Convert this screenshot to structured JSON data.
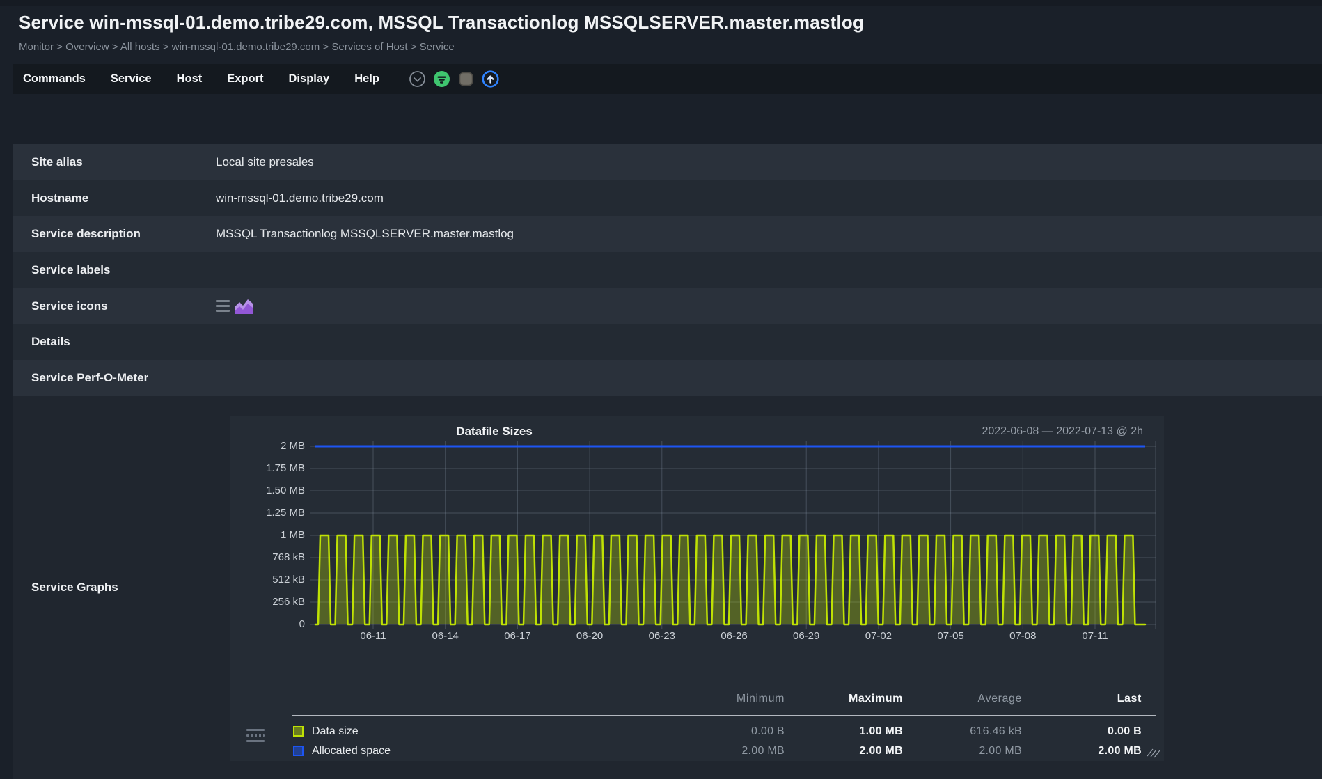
{
  "header": {
    "title": "Service win-mssql-01.demo.tribe29.com, MSSQL Transactionlog MSSQLSERVER.master.mastlog",
    "breadcrumb": "Monitor > Overview > All hosts > win-mssql-01.demo.tribe29.com > Services of Host > Service"
  },
  "menubar": {
    "items": [
      "Commands",
      "Service",
      "Host",
      "Export",
      "Display",
      "Help"
    ],
    "icons": [
      {
        "name": "collapse-menu-icon",
        "glyph": "chevron-down-circle",
        "color": "#8b939d"
      },
      {
        "name": "filter-icon",
        "glyph": "filter-circle",
        "color": "#3fc56f"
      },
      {
        "name": "suggestions-toggle-icon",
        "glyph": "rounded-square",
        "color": "#716e66"
      },
      {
        "name": "scroll-to-top-icon",
        "glyph": "arrow-up-circle",
        "color": "#2f83ff"
      }
    ]
  },
  "info_table": {
    "rows": [
      {
        "label": "Site alias",
        "value": "Local site presales"
      },
      {
        "label": "Hostname",
        "value": "win-mssql-01.demo.tribe29.com"
      },
      {
        "label": "Service description",
        "value": "MSSQL Transactionlog MSSQLSERVER.master.mastlog"
      },
      {
        "label": "Service labels",
        "value": ""
      },
      {
        "label": "Service icons",
        "value": "",
        "icons": [
          "service-menu-icon",
          "service-graph-icon"
        ]
      },
      {
        "label": "Details",
        "value": ""
      },
      {
        "label": "Service Perf-O-Meter",
        "value": ""
      }
    ],
    "graphs_row_label": "Service Graphs"
  },
  "chart_data": {
    "type": "area",
    "title": "Datafile Sizes",
    "time_range": "2022-06-08 — 2022-07-13 @ 2h",
    "x_tick_labels": [
      "06-11",
      "06-14",
      "06-17",
      "06-20",
      "06-23",
      "06-26",
      "06-29",
      "07-02",
      "07-05",
      "07-08",
      "07-11"
    ],
    "y_tick_labels": [
      "2 MB",
      "1.75 MB",
      "1.50 MB",
      "1.25 MB",
      "1 MB",
      "768 kB",
      "512 kB",
      "256 kB",
      "0"
    ],
    "ylim_bytes": [
      0,
      2097152
    ],
    "grid": true,
    "legend_position": "bottom",
    "legend_columns": [
      "Minimum",
      "Maximum",
      "Average",
      "Last"
    ],
    "series": [
      {
        "name": "Data size",
        "style": "square-wave-area",
        "low_bytes": 0,
        "high_bytes": 1048576,
        "pulse_count": 48,
        "color": "#bfe104",
        "summary": {
          "minimum": "0.00 B",
          "maximum": "1.00 MB",
          "average": "616.46 kB",
          "last": "0.00 B"
        }
      },
      {
        "name": "Allocated space",
        "style": "constant-line",
        "value_bytes": 2097152,
        "color": "#1d55f2",
        "summary": {
          "minimum": "2.00 MB",
          "maximum": "2.00 MB",
          "average": "2.00 MB",
          "last": "2.00 MB"
        }
      }
    ]
  },
  "colors": {
    "data_size_green": "#bfe104",
    "allocated_space_blue": "#1d55f2",
    "icon_purple": "#9257d6"
  }
}
